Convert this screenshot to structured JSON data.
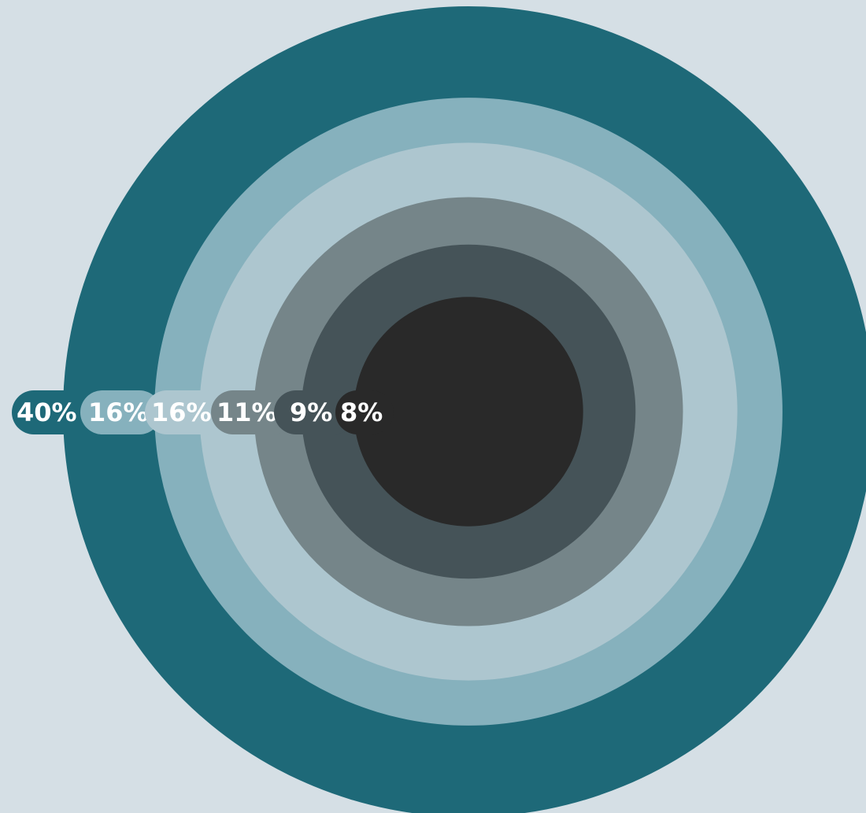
{
  "chart_data": {
    "type": "nested-circles",
    "background": "#d5dfe5",
    "series": [
      {
        "value": 40,
        "label": "40%",
        "color": "#1e6978"
      },
      {
        "value": 16,
        "label": "16%",
        "color": "#86b1bd"
      },
      {
        "value": 16,
        "label": "16%",
        "color": "#adc6cf"
      },
      {
        "value": 11,
        "label": "11%",
        "color": "#758589"
      },
      {
        "value": 9,
        "label": "9%",
        "color": "#455358"
      },
      {
        "value": 8,
        "label": "8%",
        "color": "#292929"
      }
    ]
  }
}
